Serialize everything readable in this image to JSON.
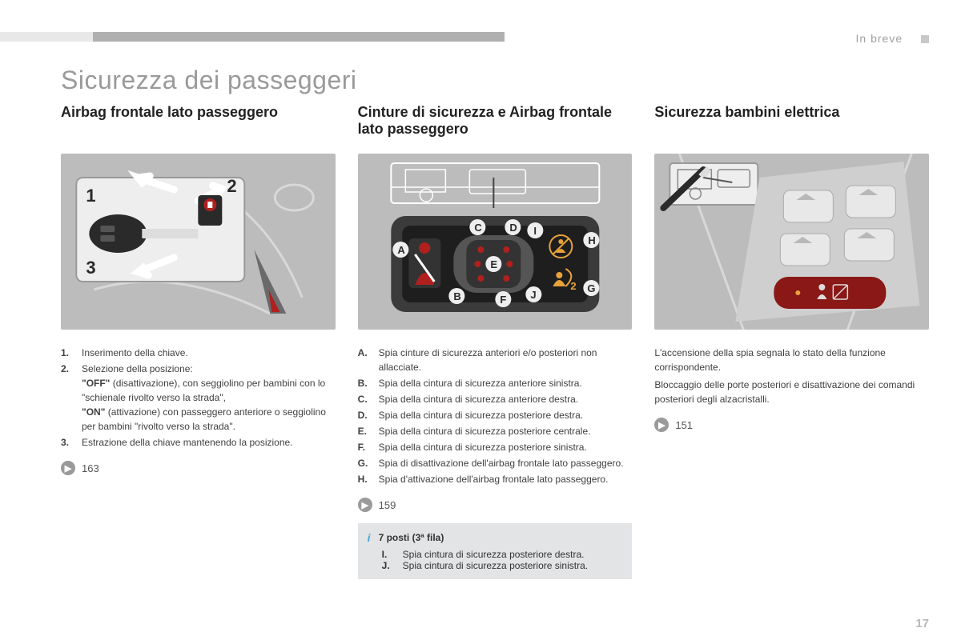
{
  "header": {
    "breadcrumb": "In breve",
    "main_title": "Sicurezza dei passeggeri"
  },
  "page_number": "17",
  "columns": {
    "airbag": {
      "title": "Airbag frontale lato passeggero",
      "items": [
        {
          "marker": "1.",
          "text": "Inserimento della chiave."
        },
        {
          "marker": "2.",
          "text": "Selezione della posizione:\n<strong>\"OFF\"</strong> (disattivazione), con seggiolino per bambini con lo \"schienale rivolto verso la strada\",\n<strong>\"ON\"</strong> (attivazione) con passeggero anteriore o seggiolino per bambini \"rivolto verso la strada\"."
        },
        {
          "marker": "3.",
          "text": "Estrazione della chiave mantenendo la posizione."
        }
      ],
      "page_ref": "163",
      "illus_labels": {
        "n1": "1",
        "n2": "2",
        "n3": "3"
      }
    },
    "cinture": {
      "title": "Cinture di sicurezza e Airbag frontale lato passeggero",
      "items": [
        {
          "marker": "A.",
          "text": "Spia cinture di sicurezza anteriori e/o posteriori non allacciate."
        },
        {
          "marker": "B.",
          "text": "Spia della cintura di sicurezza anteriore sinistra."
        },
        {
          "marker": "C.",
          "text": "Spia della cintura di sicurezza anteriore destra."
        },
        {
          "marker": "D.",
          "text": "Spia della cintura di sicurezza posteriore destra."
        },
        {
          "marker": "E.",
          "text": "Spia della cintura di sicurezza posteriore centrale."
        },
        {
          "marker": "F.",
          "text": "Spia della cintura di sicurezza posteriore sinistra."
        },
        {
          "marker": "G.",
          "text": "Spia di disattivazione dell'airbag frontale lato passeggero."
        },
        {
          "marker": "H.",
          "text": "Spia d'attivazione dell'airbag frontale lato passeggero."
        }
      ],
      "page_ref": "159",
      "info": {
        "title": "7 posti (3ª fila)",
        "items": [
          {
            "marker": "I.",
            "text": "Spia cintura di sicurezza posteriore destra."
          },
          {
            "marker": "J.",
            "text": "Spia cintura di sicurezza posteriore sinistra."
          }
        ]
      },
      "illus_labels": {
        "A": "A",
        "B": "B",
        "C": "C",
        "D": "D",
        "E": "E",
        "F": "F",
        "G": "G",
        "H": "H",
        "I": "I",
        "J": "J",
        "two": "2"
      }
    },
    "bambini": {
      "title": "Sicurezza bambini elettrica",
      "body": [
        "L'accensione della spia segnala lo stato della funzione corrispondente.",
        "Bloccaggio delle porte posteriori e disattivazione dei comandi posteriori degli alzacristalli."
      ],
      "page_ref": "151"
    }
  },
  "colors": {
    "bar_gray": "#b0b0b0",
    "bar_light": "#e8e8e8",
    "title_gray": "#9a9a9a",
    "text": "#404040",
    "illus_bg": "#bcbcbc",
    "info_bg": "#e2e4e6",
    "info_i": "#4aa5d8",
    "red": "#b0201e",
    "orange": "#e8a23a",
    "dark": "#2a2a2a",
    "white": "#ffffff",
    "panel": "#3b3b3b"
  }
}
